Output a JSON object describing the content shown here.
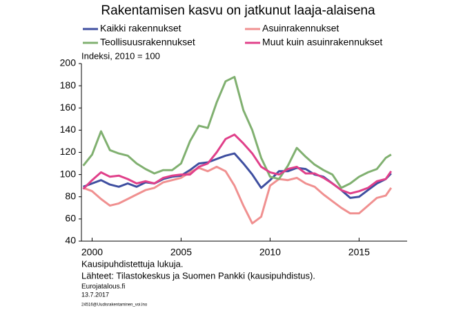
{
  "chart_data": {
    "type": "line",
    "title": "Rakentamisen kasvu on jatkunut laaja-alaisena",
    "y_label": "Indeksi, 2010 = 100",
    "notes": [
      "Kausipuhdistettuja lukuja.",
      "Lähteet: Tilastokeskus ja Suomen Pankki (kausipuhdistus).",
      "Eurojatalous.fi",
      "13.7.2017",
      "24516@Uudisrakentaminen_voi.lno"
    ],
    "x": [
      1999.5,
      2000,
      2000.5,
      2001,
      2001.5,
      2002,
      2002.5,
      2003,
      2003.5,
      2004,
      2004.5,
      2005,
      2005.5,
      2006,
      2006.5,
      2007,
      2007.5,
      2008,
      2008.5,
      2009,
      2009.5,
      2010,
      2010.5,
      2011,
      2011.5,
      2012,
      2012.5,
      2013,
      2013.5,
      2014,
      2014.5,
      2015,
      2015.5,
      2016,
      2016.5,
      2016.8
    ],
    "xlim": [
      1999.4,
      2017.7
    ],
    "xticks": [
      2000,
      2005,
      2010,
      2015
    ],
    "ylim": [
      40,
      200
    ],
    "yticks": [
      40,
      60,
      80,
      100,
      120,
      140,
      160,
      180,
      200
    ],
    "series": [
      {
        "name": "Kaikki rakennukset",
        "color": "#3f4fa0",
        "values": [
          89,
          92,
          95,
          91,
          89,
          92,
          89,
          93,
          92,
          96,
          98,
          99,
          104,
          110,
          111,
          114,
          117,
          119,
          110,
          100,
          88,
          95,
          103,
          103,
          106,
          105,
          100,
          98,
          92,
          86,
          79,
          80,
          86,
          92,
          96,
          101
        ]
      },
      {
        "name": "Asuinrakennukset",
        "color": "#f09090",
        "values": [
          88,
          85,
          78,
          72,
          74,
          78,
          82,
          86,
          88,
          93,
          95,
          97,
          102,
          106,
          103,
          107,
          103,
          90,
          72,
          56,
          62,
          90,
          96,
          95,
          97,
          92,
          89,
          82,
          76,
          70,
          65,
          65,
          72,
          79,
          81,
          88
        ]
      },
      {
        "name": "Teollisuusrakennukset",
        "color": "#80b070",
        "values": [
          108,
          118,
          139,
          122,
          119,
          117,
          110,
          105,
          101,
          104,
          104,
          110,
          130,
          144,
          142,
          165,
          184,
          188,
          158,
          140,
          115,
          98,
          96,
          108,
          124,
          116,
          109,
          104,
          100,
          88,
          92,
          98,
          102,
          105,
          115,
          118
        ]
      },
      {
        "name": "Muut kuin asuinrakennukset",
        "color": "#e0408a",
        "values": [
          87,
          95,
          102,
          98,
          99,
          96,
          92,
          94,
          92,
          97,
          99,
          100,
          100,
          107,
          110,
          120,
          132,
          136,
          128,
          119,
          107,
          102,
          100,
          105,
          107,
          101,
          101,
          97,
          92,
          86,
          83,
          85,
          88,
          94,
          96,
          103
        ]
      }
    ]
  }
}
